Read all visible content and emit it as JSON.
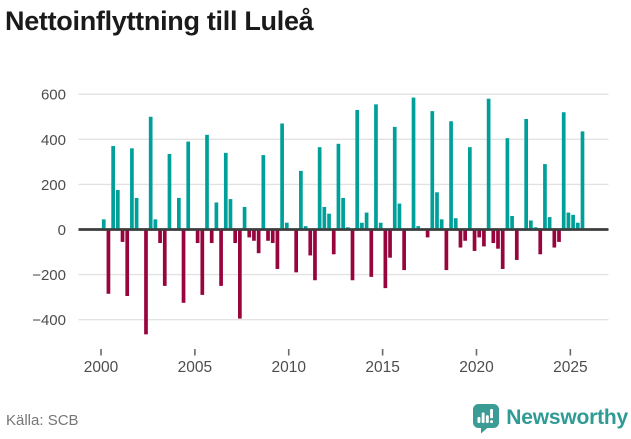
{
  "title": "Nettoinflyttning till Luleå",
  "source": "Källa: SCB",
  "logo": {
    "text": "Newsworthy",
    "icon": "newsworthy-chart-bubble-icon"
  },
  "colors": {
    "positive_bar": "#00a09a",
    "negative_bar": "#98043c",
    "gridline": "#e2e2e2",
    "zero_line": "#3c3c3c",
    "axis_text": "#4d4d4d",
    "tick_mark": "#6b6b6b",
    "title_text": "#1a1a1a",
    "source_text": "#767676",
    "logo_teal": "#3b9c96",
    "logo_text_teal": "#2f9b94",
    "background": "#ffffff"
  },
  "chart_data": {
    "type": "bar",
    "title": "Nettoinflyttning till Luleå",
    "xlabel": "",
    "ylabel": "",
    "x_unit": "quarter",
    "start_year": 2000,
    "start_quarter": 1,
    "end_label": "2025 Q3",
    "values": [
      45,
      -285,
      370,
      175,
      -55,
      -295,
      360,
      140,
      0,
      -465,
      500,
      45,
      -60,
      -250,
      335,
      0,
      140,
      -325,
      390,
      0,
      -60,
      -290,
      420,
      -60,
      120,
      -250,
      340,
      135,
      -60,
      -395,
      100,
      -35,
      -50,
      -105,
      330,
      -50,
      -60,
      -175,
      470,
      30,
      0,
      -190,
      260,
      15,
      -115,
      -225,
      365,
      100,
      70,
      -110,
      380,
      140,
      10,
      -225,
      530,
      30,
      75,
      -210,
      555,
      30,
      -260,
      -125,
      455,
      115,
      -180,
      0,
      585,
      15,
      0,
      -35,
      525,
      165,
      45,
      -180,
      480,
      50,
      -80,
      -50,
      365,
      -95,
      -35,
      -75,
      580,
      -60,
      -85,
      -175,
      405,
      60,
      -135,
      0,
      490,
      40,
      10,
      -110,
      290,
      55,
      -80,
      -55,
      520,
      75,
      65,
      30,
      435
    ],
    "yticks": [
      600,
      400,
      200,
      0,
      -200,
      -400
    ],
    "xticks": [
      2000,
      2005,
      2010,
      2015,
      2020,
      2025
    ],
    "ylim": [
      -480,
      620
    ],
    "grid": true,
    "legend": false
  }
}
